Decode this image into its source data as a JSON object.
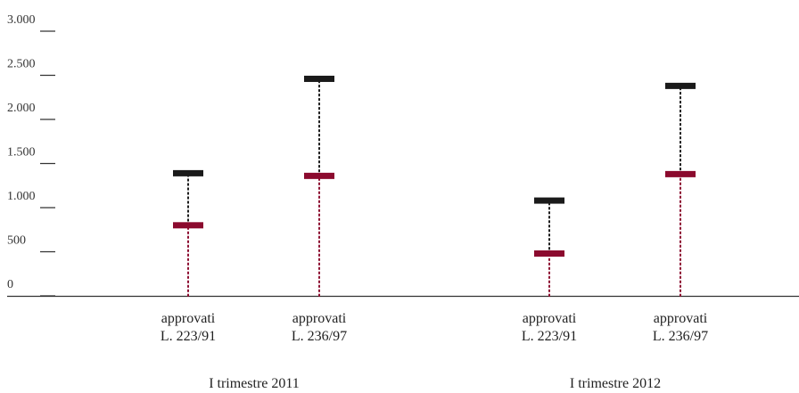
{
  "chart_data": {
    "type": "range",
    "title": "",
    "xlabel": "",
    "ylabel": "",
    "ylim": [
      0,
      3000
    ],
    "y_ticks": [
      0,
      500,
      1000,
      1500,
      2000,
      2500,
      3000
    ],
    "y_tick_labels": [
      "0",
      "500",
      "1.000",
      "1.500",
      "2.000",
      "2.500",
      "3.000"
    ],
    "groups": [
      {
        "label": "I trimestre 2011",
        "items": [
          {
            "label_line1": "approvati",
            "label_line2": "L. 223/91",
            "low": 800,
            "high": 1390
          },
          {
            "label_line1": "approvati",
            "label_line2": "L. 236/97",
            "low": 1360,
            "high": 2460
          }
        ]
      },
      {
        "label": "I trimestre 2012",
        "items": [
          {
            "label_line1": "approvati",
            "label_line2": "L. 223/91",
            "low": 480,
            "high": 1080
          },
          {
            "label_line1": "approvati",
            "label_line2": "L. 236/97",
            "low": 1380,
            "high": 2380
          }
        ]
      }
    ],
    "colors": {
      "low": "#8b0a2e",
      "high": "#1a1a1a",
      "axis": "#333333"
    },
    "grid": false,
    "legend": "none"
  }
}
